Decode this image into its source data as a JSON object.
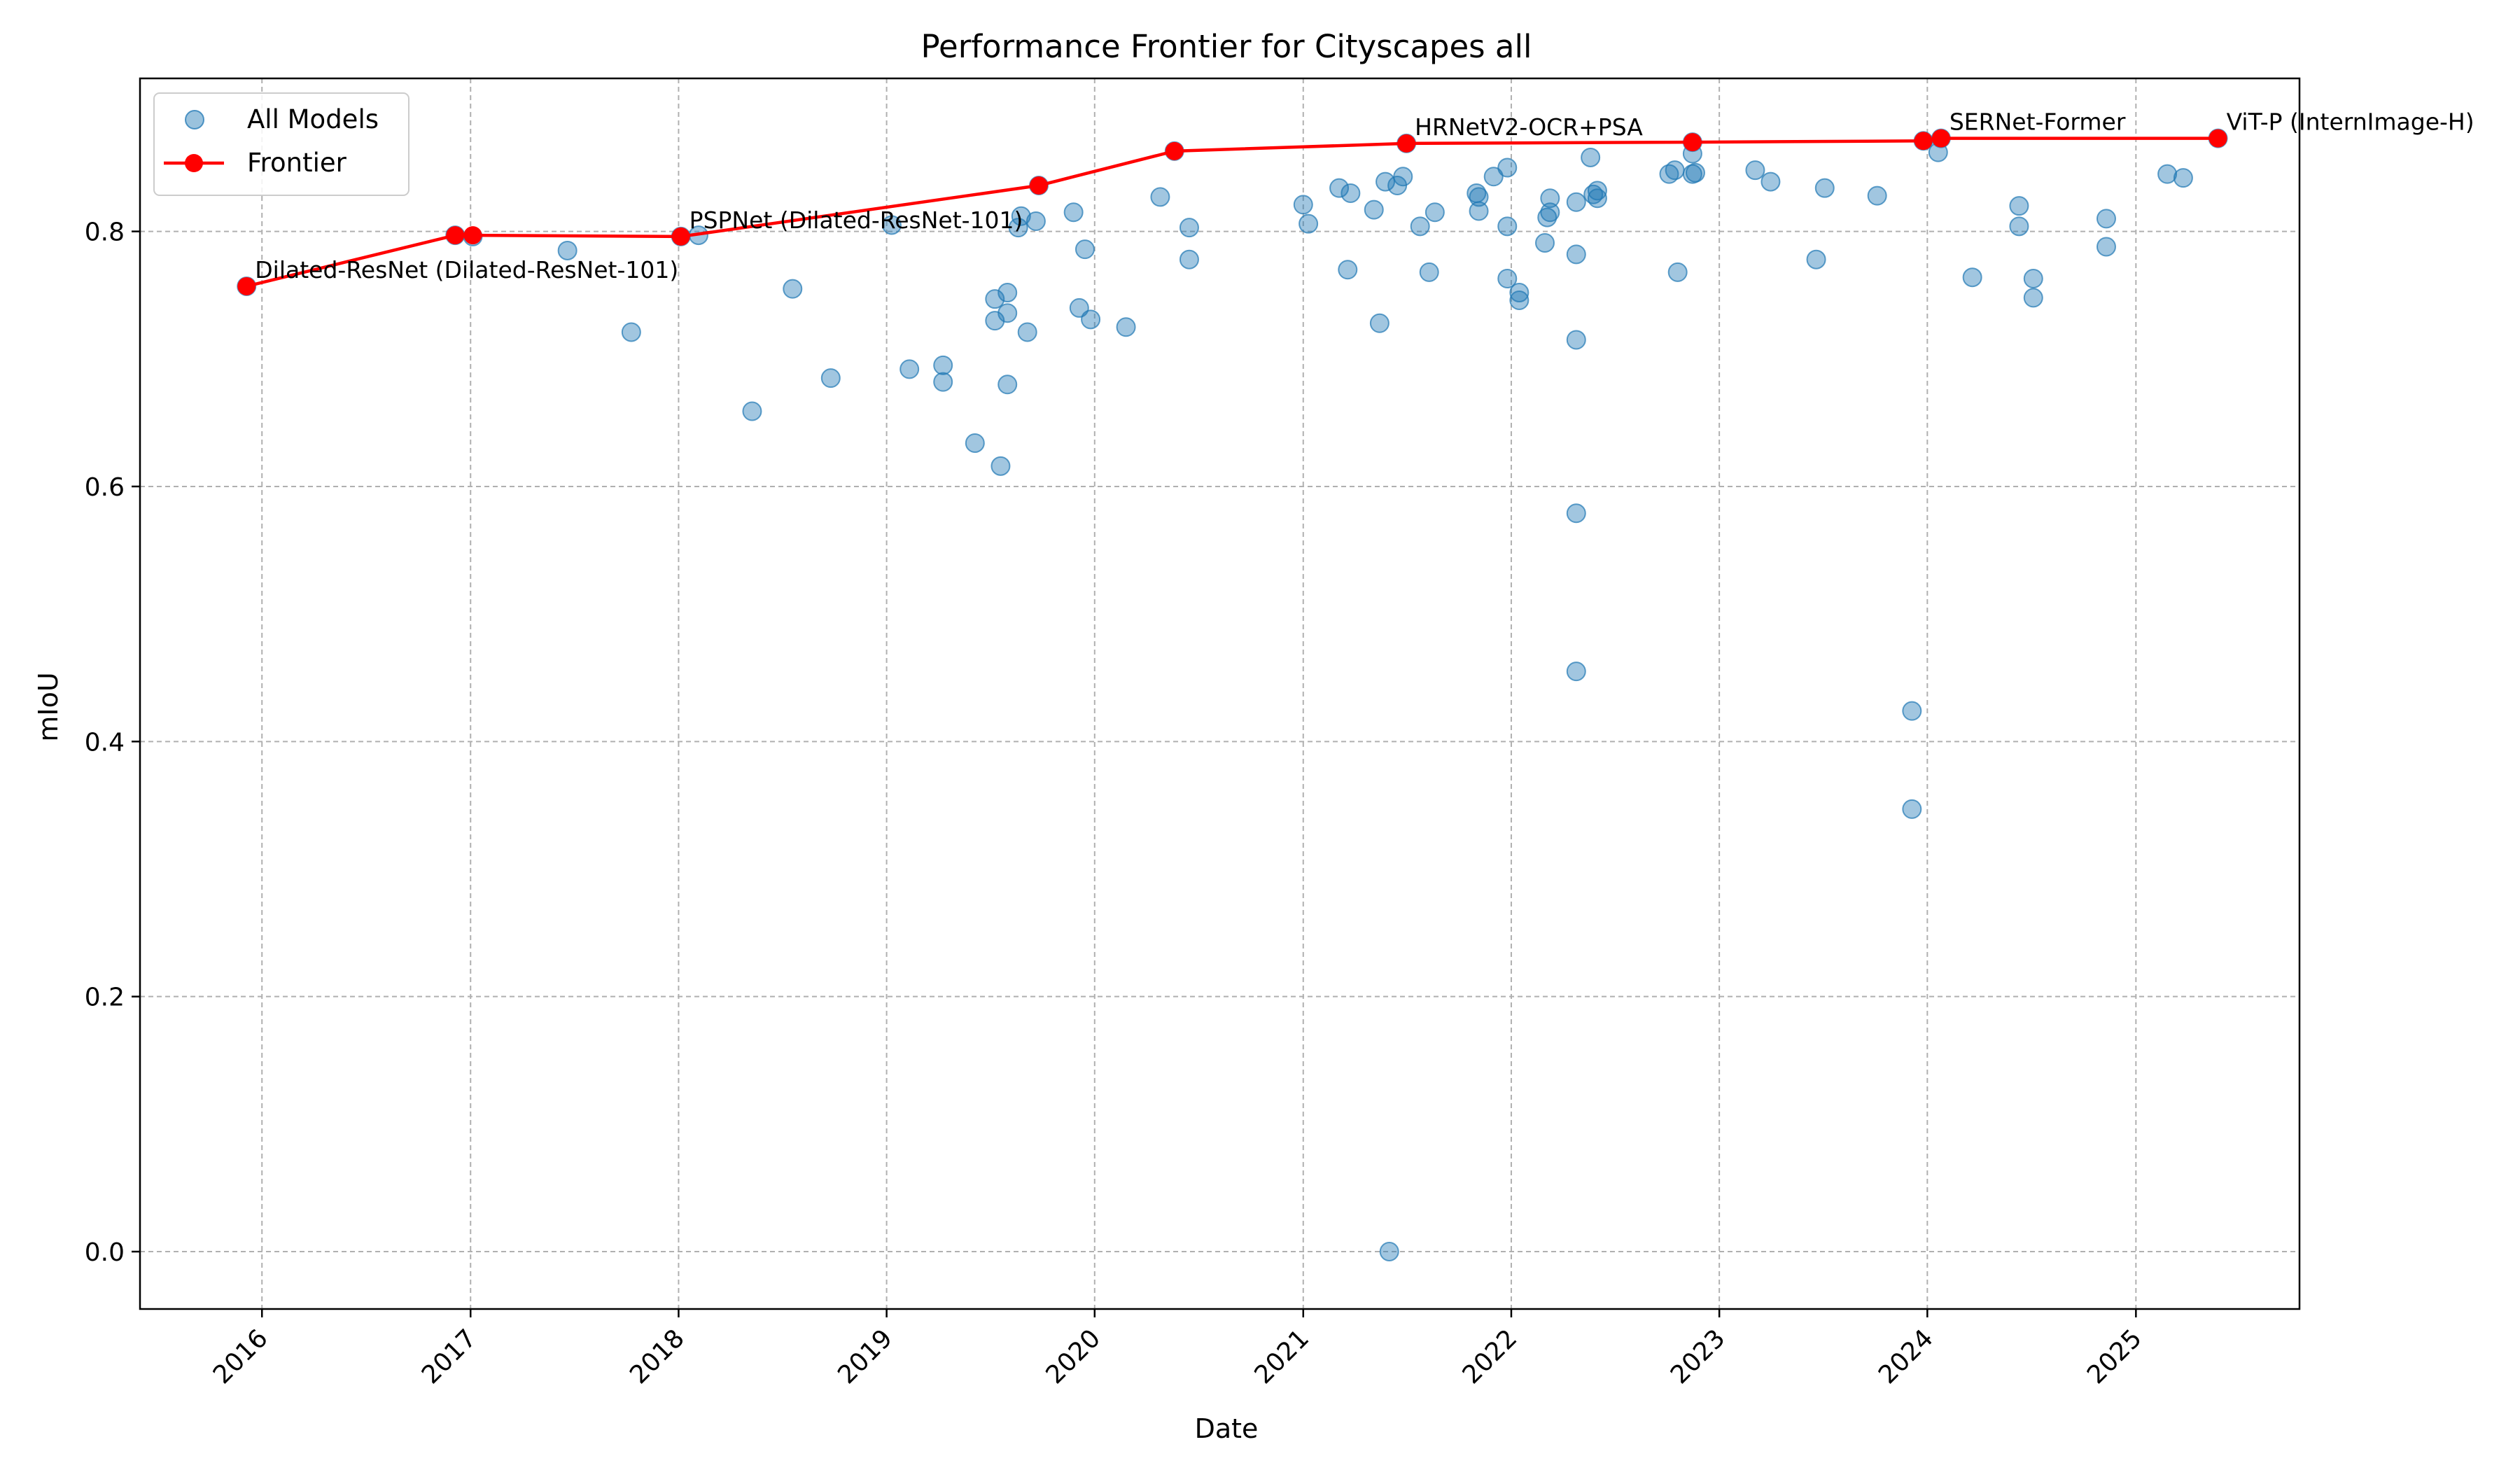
{
  "chart_data": {
    "type": "scatter",
    "title": "Performance Frontier for Cityscapes all",
    "xlabel": "Date",
    "ylabel": "mIoU",
    "xlim": [
      "2015-06-01",
      "2025-10-15"
    ],
    "ylim": [
      -0.045,
      0.92
    ],
    "x_ticks": [
      "2016",
      "2017",
      "2018",
      "2019",
      "2020",
      "2021",
      "2022",
      "2023",
      "2024",
      "2025"
    ],
    "y_ticks": [
      0.0,
      0.2,
      0.4,
      0.6,
      0.8
    ],
    "y_tick_labels": [
      "0.0",
      "0.2",
      "0.4",
      "0.6",
      "0.8"
    ],
    "grid": true,
    "legend": {
      "position": "top-left",
      "entries": [
        "All Models",
        "Frontier"
      ]
    },
    "colors": {
      "scatter": "#1f77b4",
      "frontier": "#ff0000"
    },
    "series": [
      {
        "name": "All Models",
        "points": [
          [
            "2015-12-05",
            0.757
          ],
          [
            "2016-12-05",
            0.797
          ],
          [
            "2017-01-05",
            0.796
          ],
          [
            "2017-06-20",
            0.785
          ],
          [
            "2017-10-10",
            0.721
          ],
          [
            "2018-01-05",
            0.796
          ],
          [
            "2018-02-05",
            0.797
          ],
          [
            "2018-05-10",
            0.659
          ],
          [
            "2018-07-20",
            0.755
          ],
          [
            "2018-09-25",
            0.685
          ],
          [
            "2019-01-10",
            0.805
          ],
          [
            "2019-02-10",
            0.692
          ],
          [
            "2019-04-10",
            0.695
          ],
          [
            "2019-04-10",
            0.682
          ],
          [
            "2019-06-05",
            0.634
          ],
          [
            "2019-07-10",
            0.747
          ],
          [
            "2019-07-10",
            0.73
          ],
          [
            "2019-07-20",
            0.616
          ],
          [
            "2019-08-01",
            0.752
          ],
          [
            "2019-08-01",
            0.736
          ],
          [
            "2019-08-01",
            0.68
          ],
          [
            "2019-08-20",
            0.803
          ],
          [
            "2019-08-25",
            0.812
          ],
          [
            "2019-09-05",
            0.721
          ],
          [
            "2019-09-20",
            0.808
          ],
          [
            "2019-09-25",
            0.836
          ],
          [
            "2019-11-25",
            0.815
          ],
          [
            "2019-12-05",
            0.74
          ],
          [
            "2019-12-15",
            0.786
          ],
          [
            "2019-12-25",
            0.731
          ],
          [
            "2020-02-25",
            0.725
          ],
          [
            "2020-04-25",
            0.827
          ],
          [
            "2020-05-20",
            0.863
          ],
          [
            "2020-06-15",
            0.803
          ],
          [
            "2020-06-15",
            0.778
          ],
          [
            "2021-01-01",
            0.821
          ],
          [
            "2021-01-10",
            0.806
          ],
          [
            "2021-03-05",
            0.834
          ],
          [
            "2021-03-20",
            0.77
          ],
          [
            "2021-03-25",
            0.83
          ],
          [
            "2021-05-05",
            0.817
          ],
          [
            "2021-05-15",
            0.728
          ],
          [
            "2021-05-25",
            0.839
          ],
          [
            "2021-06-01",
            0.0
          ],
          [
            "2021-06-15",
            0.836
          ],
          [
            "2021-06-25",
            0.843
          ],
          [
            "2021-07-01",
            0.869
          ],
          [
            "2021-07-25",
            0.804
          ],
          [
            "2021-08-10",
            0.768
          ],
          [
            "2021-08-20",
            0.815
          ],
          [
            "2021-11-01",
            0.83
          ],
          [
            "2021-11-05",
            0.816
          ],
          [
            "2021-11-05",
            0.827
          ],
          [
            "2021-12-01",
            0.843
          ],
          [
            "2021-12-25",
            0.804
          ],
          [
            "2021-12-25",
            0.85
          ],
          [
            "2021-12-25",
            0.763
          ],
          [
            "2022-01-15",
            0.752
          ],
          [
            "2022-01-15",
            0.746
          ],
          [
            "2022-03-01",
            0.791
          ],
          [
            "2022-03-05",
            0.811
          ],
          [
            "2022-03-10",
            0.826
          ],
          [
            "2022-03-10",
            0.815
          ],
          [
            "2022-04-25",
            0.823
          ],
          [
            "2022-04-25",
            0.715
          ],
          [
            "2022-04-25",
            0.782
          ],
          [
            "2022-04-25",
            0.579
          ],
          [
            "2022-04-25",
            0.455
          ],
          [
            "2022-05-20",
            0.858
          ],
          [
            "2022-05-25",
            0.829
          ],
          [
            "2022-06-01",
            0.832
          ],
          [
            "2022-06-01",
            0.826
          ],
          [
            "2022-10-05",
            0.845
          ],
          [
            "2022-10-15",
            0.848
          ],
          [
            "2022-10-20",
            0.768
          ],
          [
            "2022-11-15",
            0.87
          ],
          [
            "2022-11-15",
            0.861
          ],
          [
            "2022-11-15",
            0.845
          ],
          [
            "2022-11-20",
            0.846
          ],
          [
            "2023-03-05",
            0.848
          ],
          [
            "2023-04-01",
            0.839
          ],
          [
            "2023-06-20",
            0.778
          ],
          [
            "2023-07-05",
            0.834
          ],
          [
            "2023-10-05",
            0.828
          ],
          [
            "2023-12-05",
            0.424
          ],
          [
            "2023-12-05",
            0.347
          ],
          [
            "2023-12-25",
            0.871
          ],
          [
            "2024-01-20",
            0.862
          ],
          [
            "2024-01-25",
            0.873
          ],
          [
            "2024-03-20",
            0.764
          ],
          [
            "2024-06-10",
            0.82
          ],
          [
            "2024-06-10",
            0.804
          ],
          [
            "2024-07-05",
            0.763
          ],
          [
            "2024-07-05",
            0.748
          ],
          [
            "2024-11-10",
            0.81
          ],
          [
            "2024-11-10",
            0.788
          ],
          [
            "2025-02-25",
            0.845
          ],
          [
            "2025-03-25",
            0.842
          ],
          [
            "2025-05-25",
            0.873
          ]
        ]
      },
      {
        "name": "Frontier",
        "points": [
          [
            "2015-12-05",
            0.757
          ],
          [
            "2016-12-05",
            0.797
          ],
          [
            "2017-01-05",
            0.797
          ],
          [
            "2018-01-05",
            0.796
          ],
          [
            "2019-09-25",
            0.836
          ],
          [
            "2020-05-20",
            0.863
          ],
          [
            "2021-07-01",
            0.869
          ],
          [
            "2022-11-15",
            0.87
          ],
          [
            "2023-12-25",
            0.871
          ],
          [
            "2024-01-25",
            0.873
          ],
          [
            "2025-05-25",
            0.873
          ]
        ]
      }
    ],
    "annotations": [
      {
        "text": "Dilated-ResNet (Dilated-ResNet-101)",
        "x": "2015-12-05",
        "y": 0.757
      },
      {
        "text": "PSPNet (Dilated-ResNet-101)",
        "x": "2018-01-05",
        "y": 0.796
      },
      {
        "text": "HRNetV2-OCR+PSA",
        "x": "2021-07-01",
        "y": 0.869
      },
      {
        "text": "SERNet-Former",
        "x": "2024-01-25",
        "y": 0.873
      },
      {
        "text": "ViT-P (InternImage-H)",
        "x": "2025-05-25",
        "y": 0.873
      }
    ]
  }
}
